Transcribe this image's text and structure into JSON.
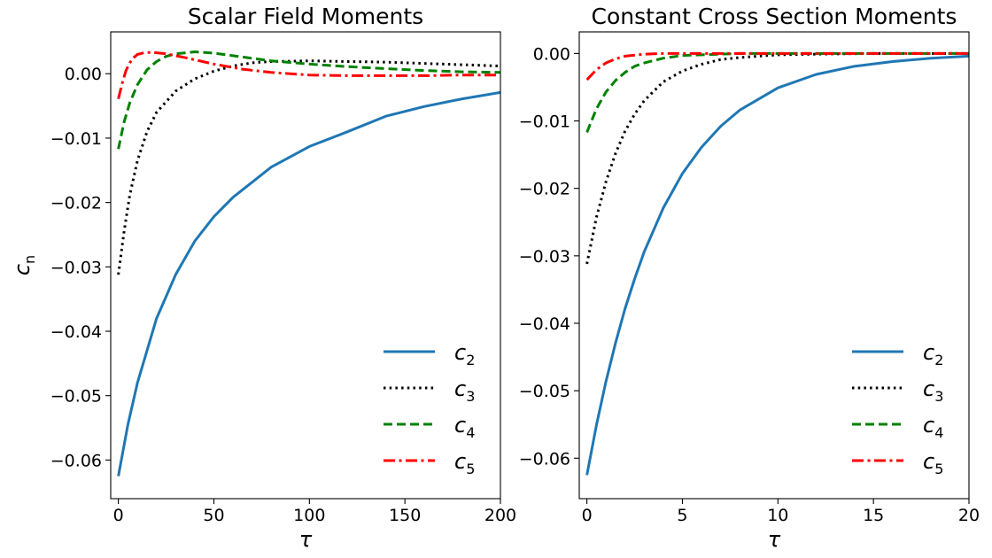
{
  "chart_data": [
    {
      "type": "line",
      "title": "Scalar Field Moments",
      "xlabel": "τ",
      "ylabel_main": "c",
      "ylabel_sub": "n",
      "xlim": [
        -4,
        200
      ],
      "ylim": [
        -0.066,
        0.0065
      ],
      "xticks": [
        0,
        50,
        100,
        150,
        200
      ],
      "xtick_labels": [
        "0",
        "50",
        "100",
        "150",
        "200"
      ],
      "yticks": [
        0.0,
        -0.01,
        -0.02,
        -0.03,
        -0.04,
        -0.05,
        -0.06
      ],
      "ytick_labels": [
        "0.00",
        "−0.01",
        "−0.02",
        "−0.03",
        "−0.04",
        "−0.05",
        "−0.06"
      ],
      "grid": false,
      "legend_position": "lower-right",
      "series": [
        {
          "name": "c",
          "sub": "2",
          "color": "#1f77b4",
          "dash": "solid",
          "x": [
            0,
            5,
            10,
            20,
            30,
            40,
            50,
            60,
            80,
            100,
            120,
            140,
            160,
            180,
            200
          ],
          "y": [
            -0.0625,
            -0.0545,
            -0.048,
            -0.038,
            -0.0312,
            -0.026,
            -0.0222,
            -0.0192,
            -0.0145,
            -0.0113,
            -0.009,
            -0.0066,
            -0.0051,
            -0.0039,
            -0.0029
          ]
        },
        {
          "name": "c",
          "sub": "3",
          "color": "#000000",
          "dash": "dotted",
          "x": [
            0,
            3,
            6,
            10,
            15,
            20,
            30,
            40,
            50,
            60,
            70,
            80,
            100,
            120,
            140,
            160,
            180,
            200
          ],
          "y": [
            -0.0312,
            -0.0245,
            -0.0188,
            -0.0135,
            -0.009,
            -0.006,
            -0.0027,
            -0.0008,
            0.0004,
            0.0012,
            0.0017,
            0.0019,
            0.002,
            0.0019,
            0.0018,
            0.0016,
            0.0014,
            0.0012
          ]
        },
        {
          "name": "c",
          "sub": "4",
          "color": "#008000",
          "dash": "dashed",
          "x": [
            0,
            3,
            6,
            10,
            15,
            20,
            25,
            30,
            40,
            50,
            60,
            70,
            80,
            100,
            120,
            140,
            160,
            180,
            200
          ],
          "y": [
            -0.0117,
            -0.0075,
            -0.0045,
            -0.0017,
            0.0006,
            0.0019,
            0.0027,
            0.0031,
            0.0034,
            0.0032,
            0.0028,
            0.0024,
            0.002,
            0.0015,
            0.0011,
            0.0008,
            0.0005,
            0.0003,
            0.0002
          ]
        },
        {
          "name": "c",
          "sub": "5",
          "color": "#ff0000",
          "dash": "dashdot",
          "x": [
            0,
            2,
            4,
            6,
            8,
            10,
            14,
            18,
            25,
            35,
            50,
            65,
            80,
            100,
            120,
            140,
            160,
            180,
            200
          ],
          "y": [
            -0.0039,
            -0.0015,
            0.0005,
            0.0017,
            0.0025,
            0.003,
            0.0033,
            0.0033,
            0.0031,
            0.0025,
            0.0015,
            0.0007,
            0.0002,
            -0.0002,
            -0.0003,
            -0.0003,
            -0.0003,
            -0.0002,
            -0.0002
          ]
        }
      ]
    },
    {
      "type": "line",
      "title": "Constant Cross Section Moments",
      "xlabel": "τ",
      "xlim": [
        -0.4,
        20
      ],
      "ylim": [
        -0.066,
        0.0032
      ],
      "xticks": [
        0,
        5,
        10,
        15,
        20
      ],
      "xtick_labels": [
        "0",
        "5",
        "10",
        "15",
        "20"
      ],
      "yticks": [
        0.0,
        -0.01,
        -0.02,
        -0.03,
        -0.04,
        -0.05,
        -0.06
      ],
      "ytick_labels": [
        "0.00",
        "−0.01",
        "−0.02",
        "−0.03",
        "−0.04",
        "−0.05",
        "−0.06"
      ],
      "grid": false,
      "legend_position": "lower-right",
      "series": [
        {
          "name": "c",
          "sub": "2",
          "color": "#1f77b4",
          "dash": "solid",
          "x": [
            0,
            0.5,
            1,
            1.5,
            2,
            2.5,
            3,
            4,
            5,
            6,
            7,
            8,
            10,
            12,
            14,
            16,
            18,
            20
          ],
          "y": [
            -0.0625,
            -0.0551,
            -0.0486,
            -0.0429,
            -0.0378,
            -0.0334,
            -0.0294,
            -0.0229,
            -0.0178,
            -0.0139,
            -0.0108,
            -0.0084,
            -0.0051,
            -0.0031,
            -0.0019,
            -0.0012,
            -0.0007,
            -0.0004
          ]
        },
        {
          "name": "c",
          "sub": "3",
          "color": "#000000",
          "dash": "dotted",
          "x": [
            0,
            0.5,
            1,
            1.5,
            2,
            2.5,
            3,
            4,
            5,
            6,
            7,
            8,
            10,
            12,
            15,
            20
          ],
          "y": [
            -0.0312,
            -0.0243,
            -0.019,
            -0.0148,
            -0.0115,
            -0.009,
            -0.007,
            -0.0042,
            -0.0026,
            -0.0016,
            -0.0009,
            -0.0006,
            -0.0002,
            -0.0001,
            0.0,
            0.0
          ]
        },
        {
          "name": "c",
          "sub": "4",
          "color": "#008000",
          "dash": "dashed",
          "x": [
            0,
            0.5,
            1,
            1.5,
            2,
            2.5,
            3,
            4,
            5,
            6,
            8,
            10,
            15,
            20
          ],
          "y": [
            -0.0117,
            -0.0082,
            -0.0057,
            -0.004,
            -0.0028,
            -0.0019,
            -0.0014,
            -0.0007,
            -0.0003,
            -0.0002,
            0.0,
            0.0,
            0.0,
            0.0
          ]
        },
        {
          "name": "c",
          "sub": "5",
          "color": "#ff0000",
          "dash": "dashdot",
          "x": [
            0,
            0.5,
            1,
            1.5,
            2,
            3,
            4,
            5,
            6,
            8,
            10,
            15,
            20
          ],
          "y": [
            -0.0039,
            -0.0024,
            -0.0014,
            -0.0008,
            -0.0004,
            -0.0001,
            0.0,
            0.0,
            0.0,
            0.0,
            0.0,
            0.0,
            0.0
          ]
        }
      ]
    }
  ]
}
